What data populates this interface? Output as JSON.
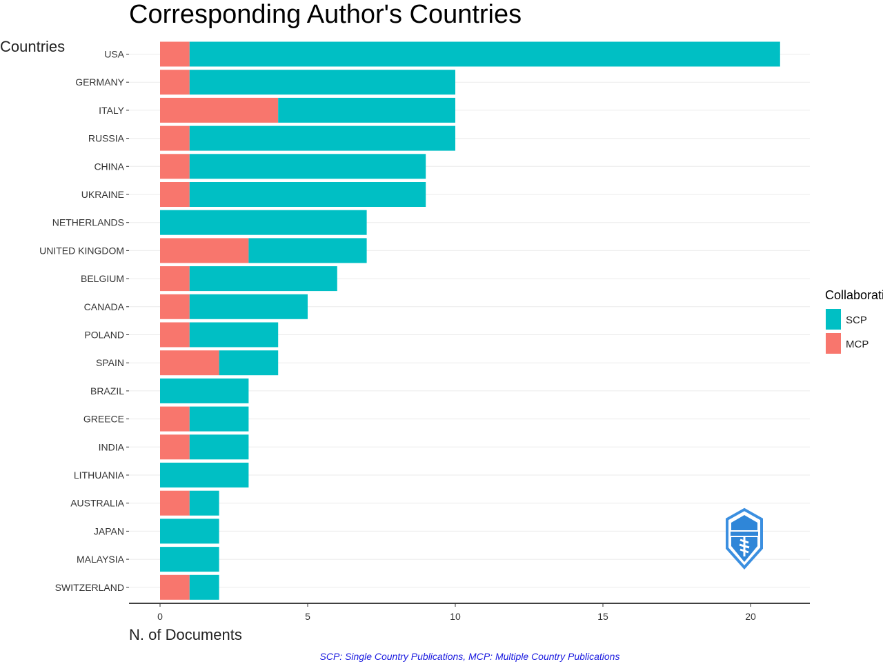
{
  "chart_data": {
    "type": "bar",
    "orientation": "horizontal",
    "stacked": true,
    "title": "Corresponding Author's Countries",
    "ylabel": "Countries",
    "xlabel": "N. of Documents",
    "categories": [
      "USA",
      "GERMANY",
      "ITALY",
      "RUSSIA",
      "CHINA",
      "UKRAINE",
      "NETHERLANDS",
      "UNITED KINGDOM",
      "BELGIUM",
      "CANADA",
      "POLAND",
      "SPAIN",
      "BRAZIL",
      "GREECE",
      "INDIA",
      "LITHUANIA",
      "AUSTRALIA",
      "JAPAN",
      "MALAYSIA",
      "SWITZERLAND"
    ],
    "series": [
      {
        "name": "MCP",
        "color": "#F8766D",
        "values": [
          1,
          1,
          4,
          1,
          1,
          1,
          0,
          3,
          1,
          1,
          1,
          2,
          0,
          1,
          1,
          0,
          1,
          0,
          0,
          1
        ]
      },
      {
        "name": "SCP",
        "color": "#00BFC4",
        "values": [
          20,
          9,
          6,
          9,
          8,
          8,
          7,
          4,
          5,
          4,
          3,
          2,
          3,
          2,
          2,
          3,
          1,
          2,
          2,
          1
        ]
      }
    ],
    "xlim": [
      0,
      21
    ],
    "xticks": [
      "0",
      "5",
      "10",
      "15",
      "20"
    ],
    "grid": true,
    "legend": {
      "title": "Collaboration",
      "placement": "right",
      "entries": [
        {
          "label": "SCP",
          "color": "#00BFC4"
        },
        {
          "label": "MCP",
          "color": "#F8766D"
        }
      ]
    },
    "caption": "SCP: Single Country Publications, MCP: Multiple Country Publications"
  }
}
